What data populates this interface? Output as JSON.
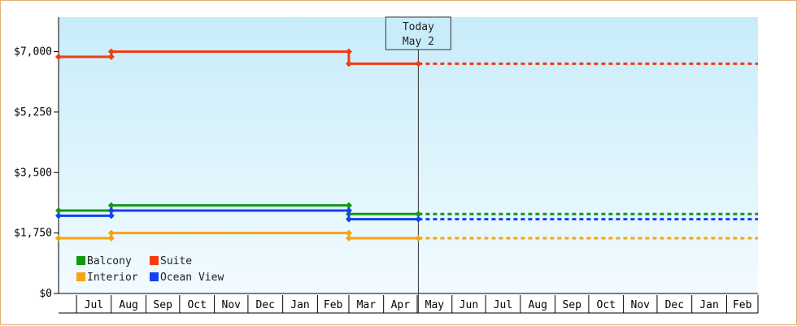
{
  "chart_data": {
    "type": "line",
    "step": true,
    "y_axis": {
      "min": 0,
      "max": 8000,
      "ticks": [
        0,
        1750,
        3500,
        5250,
        7000
      ],
      "tick_labels": [
        "$0",
        "$1,750",
        "$3,500",
        "$5,250",
        "$7,000"
      ]
    },
    "x_axis": {
      "start": "2024-06-15",
      "end": "2026-03-01",
      "months": [
        {
          "label": "Jul",
          "date": "2024-07-01"
        },
        {
          "label": "Aug",
          "date": "2024-08-01"
        },
        {
          "label": "Sep",
          "date": "2024-09-01"
        },
        {
          "label": "Oct",
          "date": "2024-10-01"
        },
        {
          "label": "Nov",
          "date": "2024-11-01"
        },
        {
          "label": "Dec",
          "date": "2024-12-01"
        },
        {
          "label": "Jan",
          "date": "2025-01-01"
        },
        {
          "label": "Feb",
          "date": "2025-02-01"
        },
        {
          "label": "Mar",
          "date": "2025-03-01"
        },
        {
          "label": "Apr",
          "date": "2025-04-01"
        },
        {
          "label": "May",
          "date": "2025-05-01"
        },
        {
          "label": "Jun",
          "date": "2025-06-01"
        },
        {
          "label": "Jul",
          "date": "2025-07-01"
        },
        {
          "label": "Aug",
          "date": "2025-08-01"
        },
        {
          "label": "Sep",
          "date": "2025-09-01"
        },
        {
          "label": "Oct",
          "date": "2025-10-01"
        },
        {
          "label": "Nov",
          "date": "2025-11-01"
        },
        {
          "label": "Dec",
          "date": "2025-12-01"
        },
        {
          "label": "Jan",
          "date": "2026-01-01"
        },
        {
          "label": "Feb",
          "date": "2026-02-01"
        }
      ]
    },
    "today": {
      "line1": "Today",
      "line2": "May 2",
      "date": "2025-05-02"
    },
    "projection_end": "2026-03-01",
    "background": {
      "top": "#c8ecfa",
      "bottom": "#f2fbff"
    },
    "grid": false,
    "legend": {
      "placement": "bottom-left",
      "order": [
        "balcony",
        "suite",
        "interior",
        "oceanview"
      ]
    },
    "series": [
      {
        "key": "balcony",
        "name": "Balcony",
        "color": "#129a12",
        "points": [
          {
            "date": "2024-06-15",
            "price": 2400
          },
          {
            "date": "2024-08-01",
            "price": 2550
          },
          {
            "date": "2025-03-01",
            "price": 2300
          }
        ]
      },
      {
        "key": "suite",
        "name": "Suite",
        "color": "#f23c12",
        "points": [
          {
            "date": "2024-06-15",
            "price": 6850
          },
          {
            "date": "2024-08-01",
            "price": 7000
          },
          {
            "date": "2025-03-01",
            "price": 6650
          }
        ]
      },
      {
        "key": "interior",
        "name": "Interior",
        "color": "#f7a312",
        "points": [
          {
            "date": "2024-06-15",
            "price": 1600
          },
          {
            "date": "2024-08-01",
            "price": 1750
          },
          {
            "date": "2025-03-01",
            "price": 1600
          }
        ]
      },
      {
        "key": "oceanview",
        "name": "Ocean View",
        "color": "#1242f2",
        "points": [
          {
            "date": "2024-06-15",
            "price": 2250
          },
          {
            "date": "2024-08-01",
            "price": 2400
          },
          {
            "date": "2025-03-01",
            "price": 2150
          }
        ]
      }
    ]
  }
}
